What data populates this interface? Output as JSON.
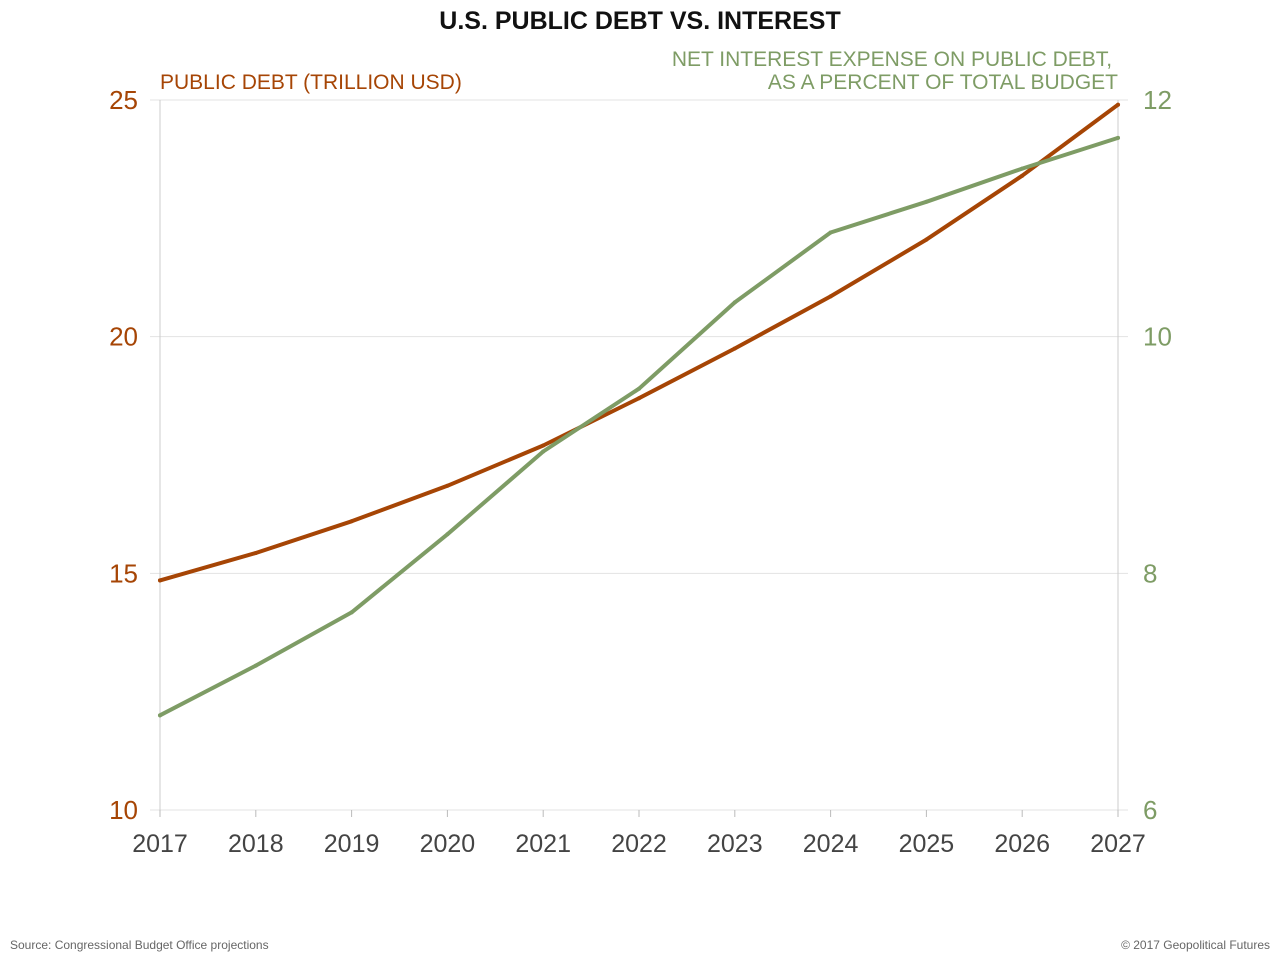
{
  "chart_data": {
    "type": "line",
    "title": "U.S. PUBLIC DEBT VS. INTEREST",
    "x": [
      2017,
      2018,
      2019,
      2020,
      2021,
      2022,
      2023,
      2024,
      2025,
      2026,
      2027
    ],
    "xlim": [
      2017,
      2027
    ],
    "y_left": {
      "label": "PUBLIC DEBT (TRILLION USD)",
      "lim": [
        10,
        25
      ],
      "ticks": [
        10,
        15,
        20,
        25
      ],
      "color": "#a64505"
    },
    "y_right": {
      "label_lines": [
        "NET INTEREST EXPENSE ON PUBLIC DEBT,",
        "AS A PERCENT OF TOTAL BUDGET"
      ],
      "lim": [
        6,
        12
      ],
      "ticks": [
        6,
        8,
        10,
        12
      ],
      "color": "#7e9c65"
    },
    "series": [
      {
        "axis": "left",
        "color": "#a64505",
        "values": [
          14.85,
          15.43,
          16.1,
          16.85,
          17.7,
          18.7,
          19.75,
          20.85,
          22.05,
          23.4,
          24.9
        ]
      },
      {
        "axis": "right",
        "color": "#7e9c65",
        "values": [
          6.8,
          7.22,
          7.67,
          8.33,
          9.03,
          9.56,
          10.29,
          10.88,
          11.14,
          11.42,
          11.68
        ]
      }
    ],
    "grid": "horizontal",
    "legend": "none"
  },
  "footer": {
    "source": "Source: Congressional Budget Office projections",
    "copyright": "© 2017 Geopolitical Futures"
  }
}
